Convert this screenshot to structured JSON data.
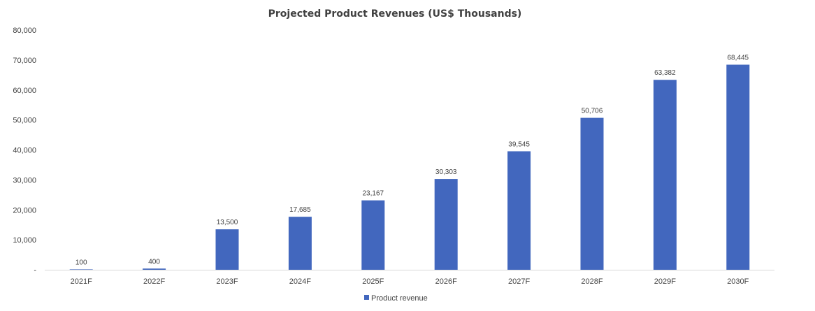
{
  "chart_data": {
    "type": "bar",
    "title": "Projected Product Revenues (US$ Thousands)",
    "xlabel": "",
    "ylabel": "",
    "categories": [
      "2021F",
      "2022F",
      "2023F",
      "2024F",
      "2025F",
      "2026F",
      "2027F",
      "2028F",
      "2029F",
      "2030F"
    ],
    "series": [
      {
        "name": "Product revenue",
        "values": [
          100,
          400,
          13500,
          17685,
          23167,
          30303,
          39545,
          50706,
          63382,
          68445
        ],
        "data_labels": [
          "100",
          "400",
          "13,500",
          "17,685",
          "23,167",
          "30,303",
          "39,545",
          "50,706",
          "63,382",
          "68,445"
        ]
      }
    ],
    "ylim": [
      0,
      80000
    ],
    "yticks": [
      0,
      10000,
      20000,
      30000,
      40000,
      50000,
      60000,
      70000,
      80000
    ],
    "ytick_labels": [
      "-",
      "10,000",
      "20,000",
      "30,000",
      "40,000",
      "50,000",
      "60,000",
      "70,000",
      "80,000"
    ],
    "grid": false,
    "legend_position": "bottom-center",
    "colors": {
      "bar": "#4267BE",
      "axis": "#D9D9D9",
      "text": "#404040"
    }
  }
}
